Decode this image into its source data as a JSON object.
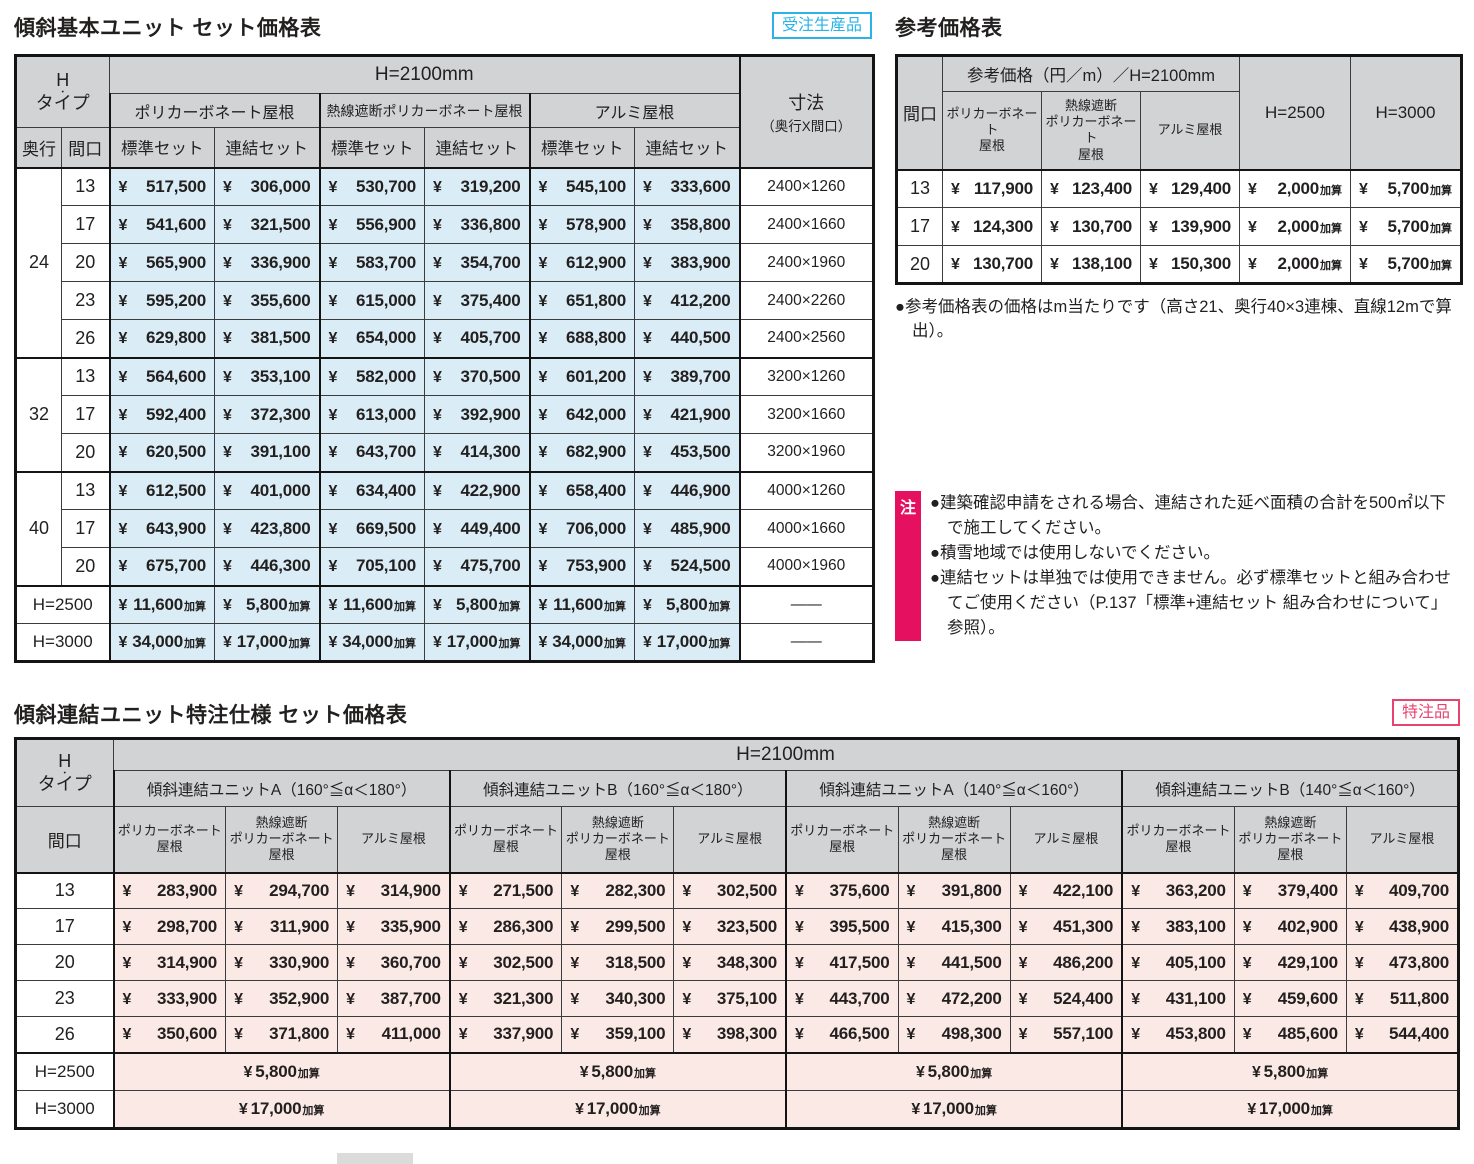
{
  "currency": "¥",
  "colors": {
    "accent_cyan": "#29b3e8",
    "accent_pink": "#e8436f",
    "note_magenta": "#e5105f",
    "cell_blue": "#daecf6",
    "cell_pink": "#fbe9e6",
    "header_gray": "#d1d3d4"
  },
  "main_table": {
    "title": "傾斜基本ユニット セット価格表",
    "badge": "受注生産品",
    "h_type_top": "H",
    "h_type_dot": "・",
    "h_type_bottom": "タイプ",
    "span_header": "H=2100mm",
    "roof_headers": [
      "ポリカーボネート屋根",
      "熱線遮断ポリカーボネート屋根",
      "アルミ屋根"
    ],
    "set_headers": [
      "標準セット",
      "連結セット"
    ],
    "depth_label": "奥行",
    "width_label": "間口",
    "dim_header": "寸法",
    "dim_header_sub": "（奥行X間口）",
    "groups": [
      {
        "depth": "24",
        "rows": [
          {
            "width": "13",
            "prices": [
              "517,500",
              "306,000",
              "530,700",
              "319,200",
              "545,100",
              "333,600"
            ],
            "dim": "2400×1260"
          },
          {
            "width": "17",
            "prices": [
              "541,600",
              "321,500",
              "556,900",
              "336,800",
              "578,900",
              "358,800"
            ],
            "dim": "2400×1660"
          },
          {
            "width": "20",
            "prices": [
              "565,900",
              "336,900",
              "583,700",
              "354,700",
              "612,900",
              "383,900"
            ],
            "dim": "2400×1960"
          },
          {
            "width": "23",
            "prices": [
              "595,200",
              "355,600",
              "615,000",
              "375,400",
              "651,800",
              "412,200"
            ],
            "dim": "2400×2260"
          },
          {
            "width": "26",
            "prices": [
              "629,800",
              "381,500",
              "654,000",
              "405,700",
              "688,800",
              "440,500"
            ],
            "dim": "2400×2560"
          }
        ]
      },
      {
        "depth": "32",
        "rows": [
          {
            "width": "13",
            "prices": [
              "564,600",
              "353,100",
              "582,000",
              "370,500",
              "601,200",
              "389,700"
            ],
            "dim": "3200×1260"
          },
          {
            "width": "17",
            "prices": [
              "592,400",
              "372,300",
              "613,000",
              "392,900",
              "642,000",
              "421,900"
            ],
            "dim": "3200×1660"
          },
          {
            "width": "20",
            "prices": [
              "620,500",
              "391,100",
              "643,700",
              "414,300",
              "682,900",
              "453,500"
            ],
            "dim": "3200×1960"
          }
        ]
      },
      {
        "depth": "40",
        "rows": [
          {
            "width": "13",
            "prices": [
              "612,500",
              "401,000",
              "634,400",
              "422,900",
              "658,400",
              "446,900"
            ],
            "dim": "4000×1260"
          },
          {
            "width": "17",
            "prices": [
              "643,900",
              "423,800",
              "669,500",
              "449,400",
              "706,000",
              "485,900"
            ],
            "dim": "4000×1660"
          },
          {
            "width": "20",
            "prices": [
              "675,700",
              "446,300",
              "705,100",
              "475,700",
              "753,900",
              "524,500"
            ],
            "dim": "4000×1960"
          }
        ]
      }
    ],
    "addition_rows": [
      {
        "label": "H=2500",
        "values": [
          "11,600",
          "5,800",
          "11,600",
          "5,800",
          "11,600",
          "5,800"
        ],
        "dim": "――"
      },
      {
        "label": "H=3000",
        "values": [
          "34,000",
          "17,000",
          "34,000",
          "17,000",
          "34,000",
          "17,000"
        ],
        "dim": "――"
      }
    ],
    "addition_suffix": "加算"
  },
  "ref_table": {
    "title": "参考価格表",
    "span_header": "参考価格（円／m）／H=2100mm",
    "width_label": "間口",
    "roof_headers": [
      "ポリカーボネート\n屋根",
      "熱線遮断\nポリカーボネート\n屋根",
      "アルミ屋根"
    ],
    "h_columns": [
      "H=2500",
      "H=3000"
    ],
    "rows": [
      {
        "width": "13",
        "prices": [
          "117,900",
          "123,400",
          "129,400"
        ],
        "additions": [
          "2,000",
          "5,700"
        ]
      },
      {
        "width": "17",
        "prices": [
          "124,300",
          "130,700",
          "139,900"
        ],
        "additions": [
          "2,000",
          "5,700"
        ]
      },
      {
        "width": "20",
        "prices": [
          "130,700",
          "138,100",
          "150,300"
        ],
        "additions": [
          "2,000",
          "5,700"
        ]
      }
    ],
    "addition_suffix": "加算",
    "note": "●参考価格表の価格はm当たりです（高さ21、奥行40×3連棟、直線12mで算出）。"
  },
  "notes": {
    "marker": "注",
    "items": [
      "●建築確認申請をされる場合、連結された延べ面積の合計を500㎡以下で施工してください。",
      "●積雪地域では使用しないでください。",
      "●連結セットは単独では使用できません。必ず標準セットと組み合わせてご使用ください（P.137「標準+連結セット 組み合わせについて」参照）。"
    ]
  },
  "custom_table": {
    "title": "傾斜連結ユニット特注仕様 セット価格表",
    "badge": "特注品",
    "h_type_top": "H",
    "h_type_dot": "・",
    "h_type_bottom": "タイプ",
    "span_header": "H=2100mm",
    "unit_headers": [
      "傾斜連結ユニットA（160°≦α＜180°）",
      "傾斜連結ユニットB（160°≦α＜180°）",
      "傾斜連結ユニットA（140°≦α＜160°）",
      "傾斜連結ユニットB（140°≦α＜160°）"
    ],
    "roof_headers": [
      "ポリカーボネート\n屋根",
      "熱線遮断\nポリカーボネート\n屋根",
      "アルミ屋根"
    ],
    "width_label": "間口",
    "rows": [
      {
        "width": "13",
        "prices": [
          "283,900",
          "294,700",
          "314,900",
          "271,500",
          "282,300",
          "302,500",
          "375,600",
          "391,800",
          "422,100",
          "363,200",
          "379,400",
          "409,700"
        ]
      },
      {
        "width": "17",
        "prices": [
          "298,700",
          "311,900",
          "335,900",
          "286,300",
          "299,500",
          "323,500",
          "395,500",
          "415,300",
          "451,300",
          "383,100",
          "402,900",
          "438,900"
        ]
      },
      {
        "width": "20",
        "prices": [
          "314,900",
          "330,900",
          "360,700",
          "302,500",
          "318,500",
          "348,300",
          "417,500",
          "441,500",
          "486,200",
          "405,100",
          "429,100",
          "473,800"
        ]
      },
      {
        "width": "23",
        "prices": [
          "333,900",
          "352,900",
          "387,700",
          "321,300",
          "340,300",
          "375,100",
          "443,700",
          "472,200",
          "524,400",
          "431,100",
          "459,600",
          "511,800"
        ]
      },
      {
        "width": "26",
        "prices": [
          "350,600",
          "371,800",
          "411,000",
          "337,900",
          "359,100",
          "398,300",
          "466,500",
          "498,300",
          "557,100",
          "453,800",
          "485,600",
          "544,400"
        ]
      }
    ],
    "addition_rows": [
      {
        "label": "H=2500",
        "value": "5,800"
      },
      {
        "label": "H=3000",
        "value": "17,000"
      }
    ],
    "addition_suffix": "加算"
  }
}
